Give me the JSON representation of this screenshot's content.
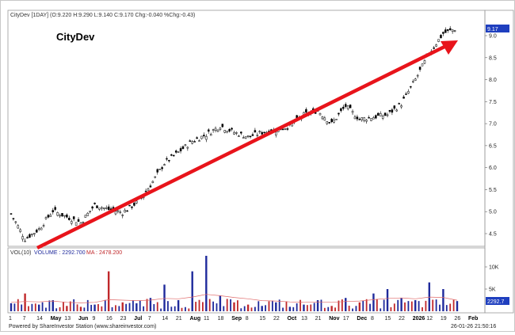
{
  "header": {
    "symbol_info": "CityDev [1DAY] (O:9.220 H:9.290 L:9.140 C:9.170 Chg:-0.040 %Chg:-0.43)",
    "logo_text": "CityDev"
  },
  "price_panel": {
    "last_price_label": "9.17",
    "y_ticks": [
      "9.0",
      "8.5",
      "8.0",
      "7.5",
      "7.0",
      "6.5",
      "6.0",
      "5.5",
      "5.0",
      "4.5"
    ]
  },
  "volume_panel": {
    "vol_label": "VOL(10)",
    "volume_text": "VOLUME : 2292.700",
    "ma_text": "MA : 2478.200",
    "last_volume_label": "2292.7",
    "y_ticks": [
      "10K",
      "5K"
    ]
  },
  "x_axis": {
    "labels": [
      {
        "text": "1",
        "bold": false
      },
      {
        "text": "7",
        "bold": false
      },
      {
        "text": "14",
        "bold": false
      },
      {
        "text": "May",
        "bold": true
      },
      {
        "text": "13",
        "bold": false
      },
      {
        "text": "Jun",
        "bold": true
      },
      {
        "text": "9",
        "bold": false
      },
      {
        "text": "16",
        "bold": false
      },
      {
        "text": "23",
        "bold": false
      },
      {
        "text": "Jul",
        "bold": true
      },
      {
        "text": "7",
        "bold": false
      },
      {
        "text": "14",
        "bold": false
      },
      {
        "text": "21",
        "bold": false
      },
      {
        "text": "Aug",
        "bold": true
      },
      {
        "text": "11",
        "bold": false
      },
      {
        "text": "18",
        "bold": false
      },
      {
        "text": "Sep",
        "bold": true
      },
      {
        "text": "8",
        "bold": false
      },
      {
        "text": "15",
        "bold": false
      },
      {
        "text": "22",
        "bold": false
      },
      {
        "text": "Oct",
        "bold": true
      },
      {
        "text": "13",
        "bold": false
      },
      {
        "text": "21",
        "bold": false
      },
      {
        "text": "Nov",
        "bold": true
      },
      {
        "text": "17",
        "bold": false
      },
      {
        "text": "Dec",
        "bold": true
      },
      {
        "text": "8",
        "bold": false
      },
      {
        "text": "15",
        "bold": false
      },
      {
        "text": "22",
        "bold": false
      },
      {
        "text": "2026",
        "bold": true
      },
      {
        "text": "12",
        "bold": false
      },
      {
        "text": "19",
        "bold": false
      },
      {
        "text": "26",
        "bold": false
      },
      {
        "text": "Feb",
        "bold": true
      }
    ]
  },
  "footer": {
    "powered_by": "Powered by ShareInvestor Station (www.shareinvestor.com)",
    "timestamp": "26-01-26 21:50:16"
  },
  "colors": {
    "trend_arrow": "#e8141b",
    "volume_up": "#1f2a9c",
    "volume_down": "#c0282b",
    "ma_line": "#e06a6a",
    "last_price_box": "#1f3fbf"
  },
  "chart_data": [
    {
      "type": "line",
      "series_style": "candlestick",
      "ylim": [
        4.2,
        9.5
      ],
      "x": [
        "Apr 1",
        "Apr 7",
        "Apr 14",
        "May 1",
        "May 13",
        "Jun 1",
        "Jun 9",
        "Jun 16",
        "Jun 23",
        "Jul 1",
        "Jul 7",
        "Jul 14",
        "Jul 21",
        "Aug 1",
        "Aug 11",
        "Aug 18",
        "Sep 1",
        "Sep 8",
        "Sep 15",
        "Sep 22",
        "Oct 1",
        "Oct 13",
        "Oct 21",
        "Nov 1",
        "Nov 17",
        "Dec 1",
        "Dec 8",
        "Dec 15",
        "Dec 22",
        "Jan 2",
        "Jan 12",
        "Jan 19",
        "Jan 26"
      ],
      "close": [
        4.95,
        4.38,
        4.6,
        5.02,
        4.88,
        4.75,
        5.15,
        5.05,
        4.98,
        5.2,
        5.6,
        6.1,
        6.35,
        6.6,
        6.75,
        6.95,
        6.8,
        6.7,
        6.8,
        6.85,
        6.95,
        7.2,
        7.3,
        7.0,
        7.4,
        7.1,
        7.15,
        7.2,
        7.45,
        8.0,
        8.6,
        9.05,
        9.17
      ],
      "annotations": [
        "trend arrow from lower-left to upper-right"
      ]
    },
    {
      "type": "bar",
      "name": "VOL(10)",
      "values": [
        1800,
        4000,
        1500,
        2500,
        1200,
        1000,
        1500,
        9000,
        2000,
        1800,
        3000,
        6000,
        2500,
        9000,
        12500,
        3500,
        2000,
        1500,
        1200,
        2000,
        1000,
        1500,
        2500,
        1200,
        3000,
        2000,
        4000,
        5000,
        3000,
        2500,
        6500,
        5000,
        2292.7
      ],
      "ma_values": [
        2000,
        2200,
        2100,
        2300,
        2000,
        1900,
        2000,
        2600,
        2500,
        2400,
        2500,
        2900,
        2800,
        3200,
        3800,
        3500,
        3100,
        2800,
        2400,
        2300,
        2100,
        2000,
        2100,
        2000,
        2200,
        2300,
        2600,
        2900,
        3000,
        2800,
        3200,
        3100,
        2478.2
      ]
    }
  ]
}
